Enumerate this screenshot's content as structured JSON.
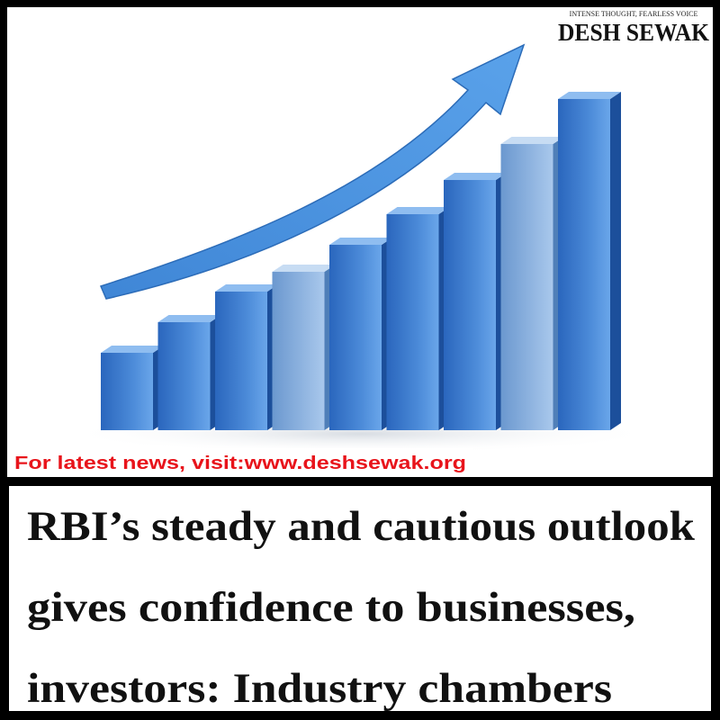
{
  "logo": {
    "tagline": "INTENSE THOUGHT, FEARLESS VOICE",
    "name": "DESH SEWAK"
  },
  "banner": "For latest news, visit:www.deshsewak.org",
  "headline": {
    "lines": [
      "RBI’s steady and cautious outlook",
      "gives confidence to businesses,",
      "investors: Industry chambers"
    ]
  }
}
